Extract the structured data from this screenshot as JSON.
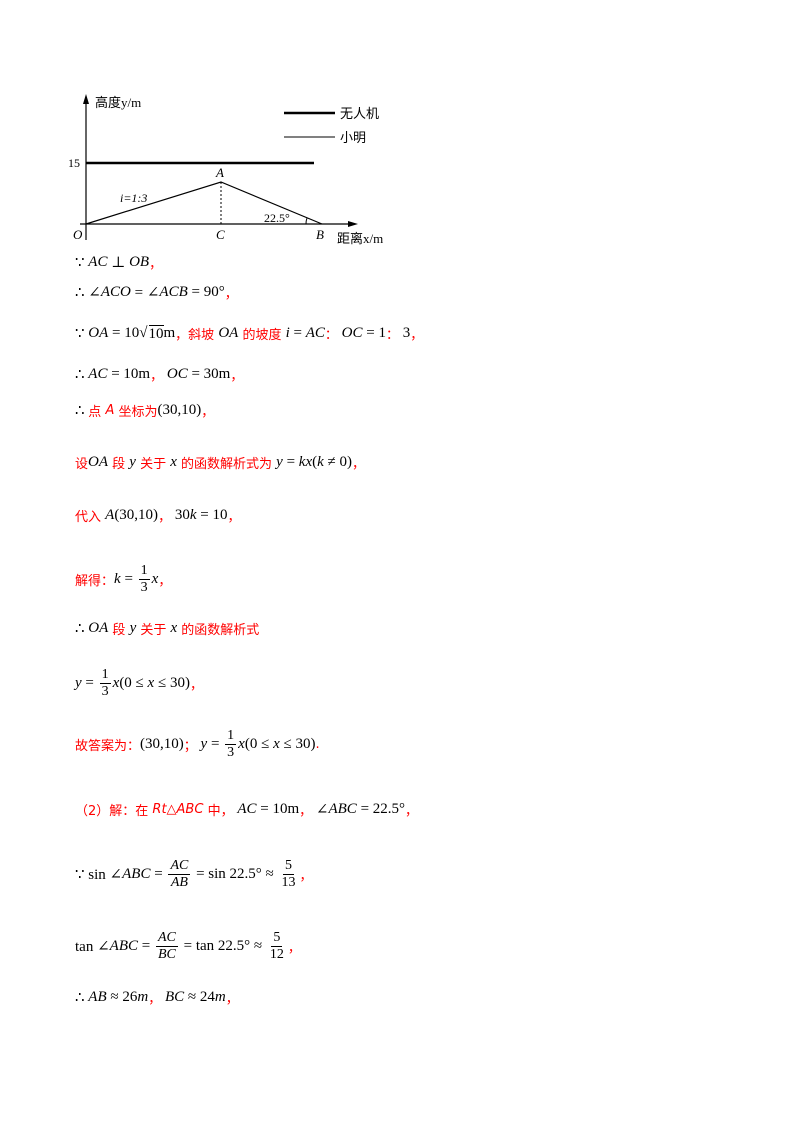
{
  "diagram": {
    "y_axis_label": "高度y/m",
    "x_axis_label": "距离x/m",
    "y_tick": "15",
    "legend": [
      {
        "label": "无人机",
        "style": "thick"
      },
      {
        "label": "小明",
        "style": "thin"
      }
    ],
    "points": {
      "O": "O",
      "A": "A",
      "B": "B",
      "C": "C"
    },
    "slope_label": "i=1:3",
    "angle_label": "22.5°"
  },
  "lines": [
    [
      {
        "t": "∵ "
      },
      {
        "t": "AC",
        "i": 1
      },
      {
        "t": " ⊥ "
      },
      {
        "t": "OB",
        "i": 1
      },
      {
        "t": "，",
        "r": 1
      }
    ],
    [
      {
        "t": "∴ ∠"
      },
      {
        "t": "ACO",
        "i": 1
      },
      {
        "t": " = ∠"
      },
      {
        "t": "ACB",
        "i": 1
      },
      {
        "t": " = 90°"
      },
      {
        "t": "，",
        "r": 1
      }
    ],
    [
      {
        "t": "∵ "
      },
      {
        "t": "OA",
        "i": 1
      },
      {
        "t": " = 10"
      },
      {
        "t": "√"
      },
      {
        "t": "10",
        "sq": 1
      },
      {
        "t": "m"
      },
      {
        "t": "，斜坡 ",
        "r": 1
      },
      {
        "t": "OA",
        "i": 1
      },
      {
        "t": " 的坡度 ",
        "r": 1
      },
      {
        "t": "i",
        "i": 1
      },
      {
        "t": " = "
      },
      {
        "t": "AC",
        "i": 1
      },
      {
        "t": "：",
        "r": 1
      },
      {
        "t": " "
      },
      {
        "t": "OC",
        "i": 1
      },
      {
        "t": " = 1"
      },
      {
        "t": "：",
        "r": 1
      },
      {
        "t": " 3"
      },
      {
        "t": "，",
        "r": 1
      }
    ],
    [
      {
        "t": "∴ "
      },
      {
        "t": "AC",
        "i": 1
      },
      {
        "t": " = 10m"
      },
      {
        "t": "，",
        "r": 1
      },
      {
        "t": " "
      },
      {
        "t": "OC",
        "i": 1
      },
      {
        "t": " = 30m"
      },
      {
        "t": "，",
        "r": 1
      }
    ],
    [
      {
        "t": "∴ "
      },
      {
        "t": "点 ",
        "r": 1
      },
      {
        "t": "A",
        "i": 1,
        "r": 1
      },
      {
        "t": " 坐标为",
        "r": 1
      },
      {
        "t": "(30,10)"
      },
      {
        "t": "，",
        "r": 1
      }
    ],
    [
      {
        "t": "设",
        "r": 1
      },
      {
        "t": "OA",
        "i": 1
      },
      {
        "t": " 段 ",
        "r": 1
      },
      {
        "t": "y",
        "i": 1
      },
      {
        "t": " 关于 ",
        "r": 1
      },
      {
        "t": "x",
        "i": 1
      },
      {
        "t": " 的函数解析式为 ",
        "r": 1
      },
      {
        "t": "y",
        "i": 1
      },
      {
        "t": " = "
      },
      {
        "t": "kx",
        "i": 1
      },
      {
        "t": "("
      },
      {
        "t": "k",
        "i": 1
      },
      {
        "t": " ≠ 0)"
      },
      {
        "t": "，",
        "r": 1
      }
    ],
    [
      {
        "t": "代入 ",
        "r": 1
      },
      {
        "t": "A",
        "i": 1
      },
      {
        "t": "(30,10)"
      },
      {
        "t": "，",
        "r": 1
      },
      {
        "t": " 30"
      },
      {
        "t": "k",
        "i": 1
      },
      {
        "t": " = 10"
      },
      {
        "t": "，",
        "r": 1
      }
    ],
    [
      {
        "t": "解得：",
        "r": 1
      },
      {
        "t": "k",
        "i": 1
      },
      {
        "t": " = "
      },
      {
        "f": [
          "1",
          "3"
        ]
      },
      {
        "t": "x",
        "i": 1
      },
      {
        "t": "，",
        "r": 1
      }
    ],
    [
      {
        "t": "∴ "
      },
      {
        "t": "OA",
        "i": 1
      },
      {
        "t": " 段 ",
        "r": 1
      },
      {
        "t": "y",
        "i": 1
      },
      {
        "t": " 关于 ",
        "r": 1
      },
      {
        "t": "x",
        "i": 1
      },
      {
        "t": " 的函数解析式",
        "r": 1
      }
    ],
    [
      {
        "t": "y",
        "i": 1
      },
      {
        "t": " = "
      },
      {
        "f": [
          "1",
          "3"
        ]
      },
      {
        "t": "x",
        "i": 1
      },
      {
        "t": "(0 ≤ "
      },
      {
        "t": "x",
        "i": 1
      },
      {
        "t": " ≤ 30)"
      },
      {
        "t": "，",
        "r": 1
      }
    ],
    [
      {
        "t": "故答案为：",
        "r": 1
      },
      {
        "t": "(30,10)"
      },
      {
        "t": "；",
        "r": 1
      },
      {
        "t": " "
      },
      {
        "t": "y",
        "i": 1
      },
      {
        "t": " = "
      },
      {
        "f": [
          "1",
          "3"
        ]
      },
      {
        "t": "x",
        "i": 1
      },
      {
        "t": "(0 ≤ "
      },
      {
        "t": "x",
        "i": 1
      },
      {
        "t": " ≤ 30)"
      },
      {
        "t": ".",
        "r": 1
      }
    ],
    [
      {
        "t": "（2）解：在 ",
        "r": 1
      },
      {
        "t": "Rt△ABC",
        "i": 1,
        "r": 1
      },
      {
        "t": " 中，",
        "r": 1
      },
      {
        "t": " "
      },
      {
        "t": "AC",
        "i": 1
      },
      {
        "t": " = 10m"
      },
      {
        "t": "，",
        "r": 1
      },
      {
        "t": " ∠"
      },
      {
        "t": "ABC",
        "i": 1
      },
      {
        "t": " = 22.5°"
      },
      {
        "t": "，",
        "r": 1
      }
    ],
    [
      {
        "t": "∵ sin ∠"
      },
      {
        "t": "ABC",
        "i": 1
      },
      {
        "t": " = "
      },
      {
        "f": [
          "AC",
          "AB"
        ],
        "i": 1
      },
      {
        "t": " = sin 22.5° ≈ "
      },
      {
        "f": [
          "5",
          "13"
        ]
      },
      {
        "t": "，",
        "r": 1
      }
    ],
    [
      {
        "t": "tan ∠"
      },
      {
        "t": "ABC",
        "i": 1
      },
      {
        "t": " = "
      },
      {
        "f": [
          "AC",
          "BC"
        ],
        "i": 1
      },
      {
        "t": " = tan 22.5° ≈ "
      },
      {
        "f": [
          "5",
          "12"
        ]
      },
      {
        "t": "，",
        "r": 1
      }
    ],
    [
      {
        "t": "∴ "
      },
      {
        "t": "AB",
        "i": 1
      },
      {
        "t": " ≈ 26"
      },
      {
        "t": "m",
        "i": 1
      },
      {
        "t": "，",
        "r": 1
      },
      {
        "t": " "
      },
      {
        "t": "BC",
        "i": 1
      },
      {
        "t": " ≈ 24"
      },
      {
        "t": "m",
        "i": 1
      },
      {
        "t": "，",
        "r": 1
      }
    ]
  ]
}
